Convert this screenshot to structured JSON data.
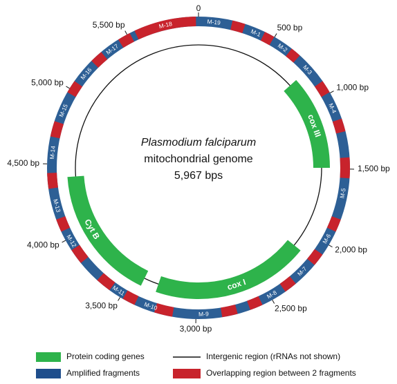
{
  "center_label": {
    "organism": "Plasmodium falciparum",
    "description": "mitochondrial genome",
    "size": "5,967 bps"
  },
  "position_labels": [
    "0",
    "500 bp",
    "1,000 bp",
    "1,500 bp",
    "2,000 bp",
    "2,500 bp",
    "3,000 bp",
    "3,500 bp",
    "4,000 bp",
    "4,500 bp",
    "5,000 bp",
    "5,500 bp"
  ],
  "fragments": [
    "M-1",
    "M-2",
    "M-3",
    "M-4",
    "M-5",
    "M-6",
    "M-7",
    "M-8",
    "M-9",
    "M-10",
    "M-11",
    "M-12",
    "M-13",
    "M-14",
    "M-15",
    "M-16",
    "M-17",
    "M-18",
    "M-19"
  ],
  "genes": [
    "cox III",
    "cox I",
    "Cyt B"
  ],
  "legend": [
    {
      "label": "Protein coding genes"
    },
    {
      "label": "Intergenic region (rRNAs not shown)"
    },
    {
      "label": "Amplified fragments"
    },
    {
      "label": "Overlapping region between 2 fragments"
    }
  ]
}
